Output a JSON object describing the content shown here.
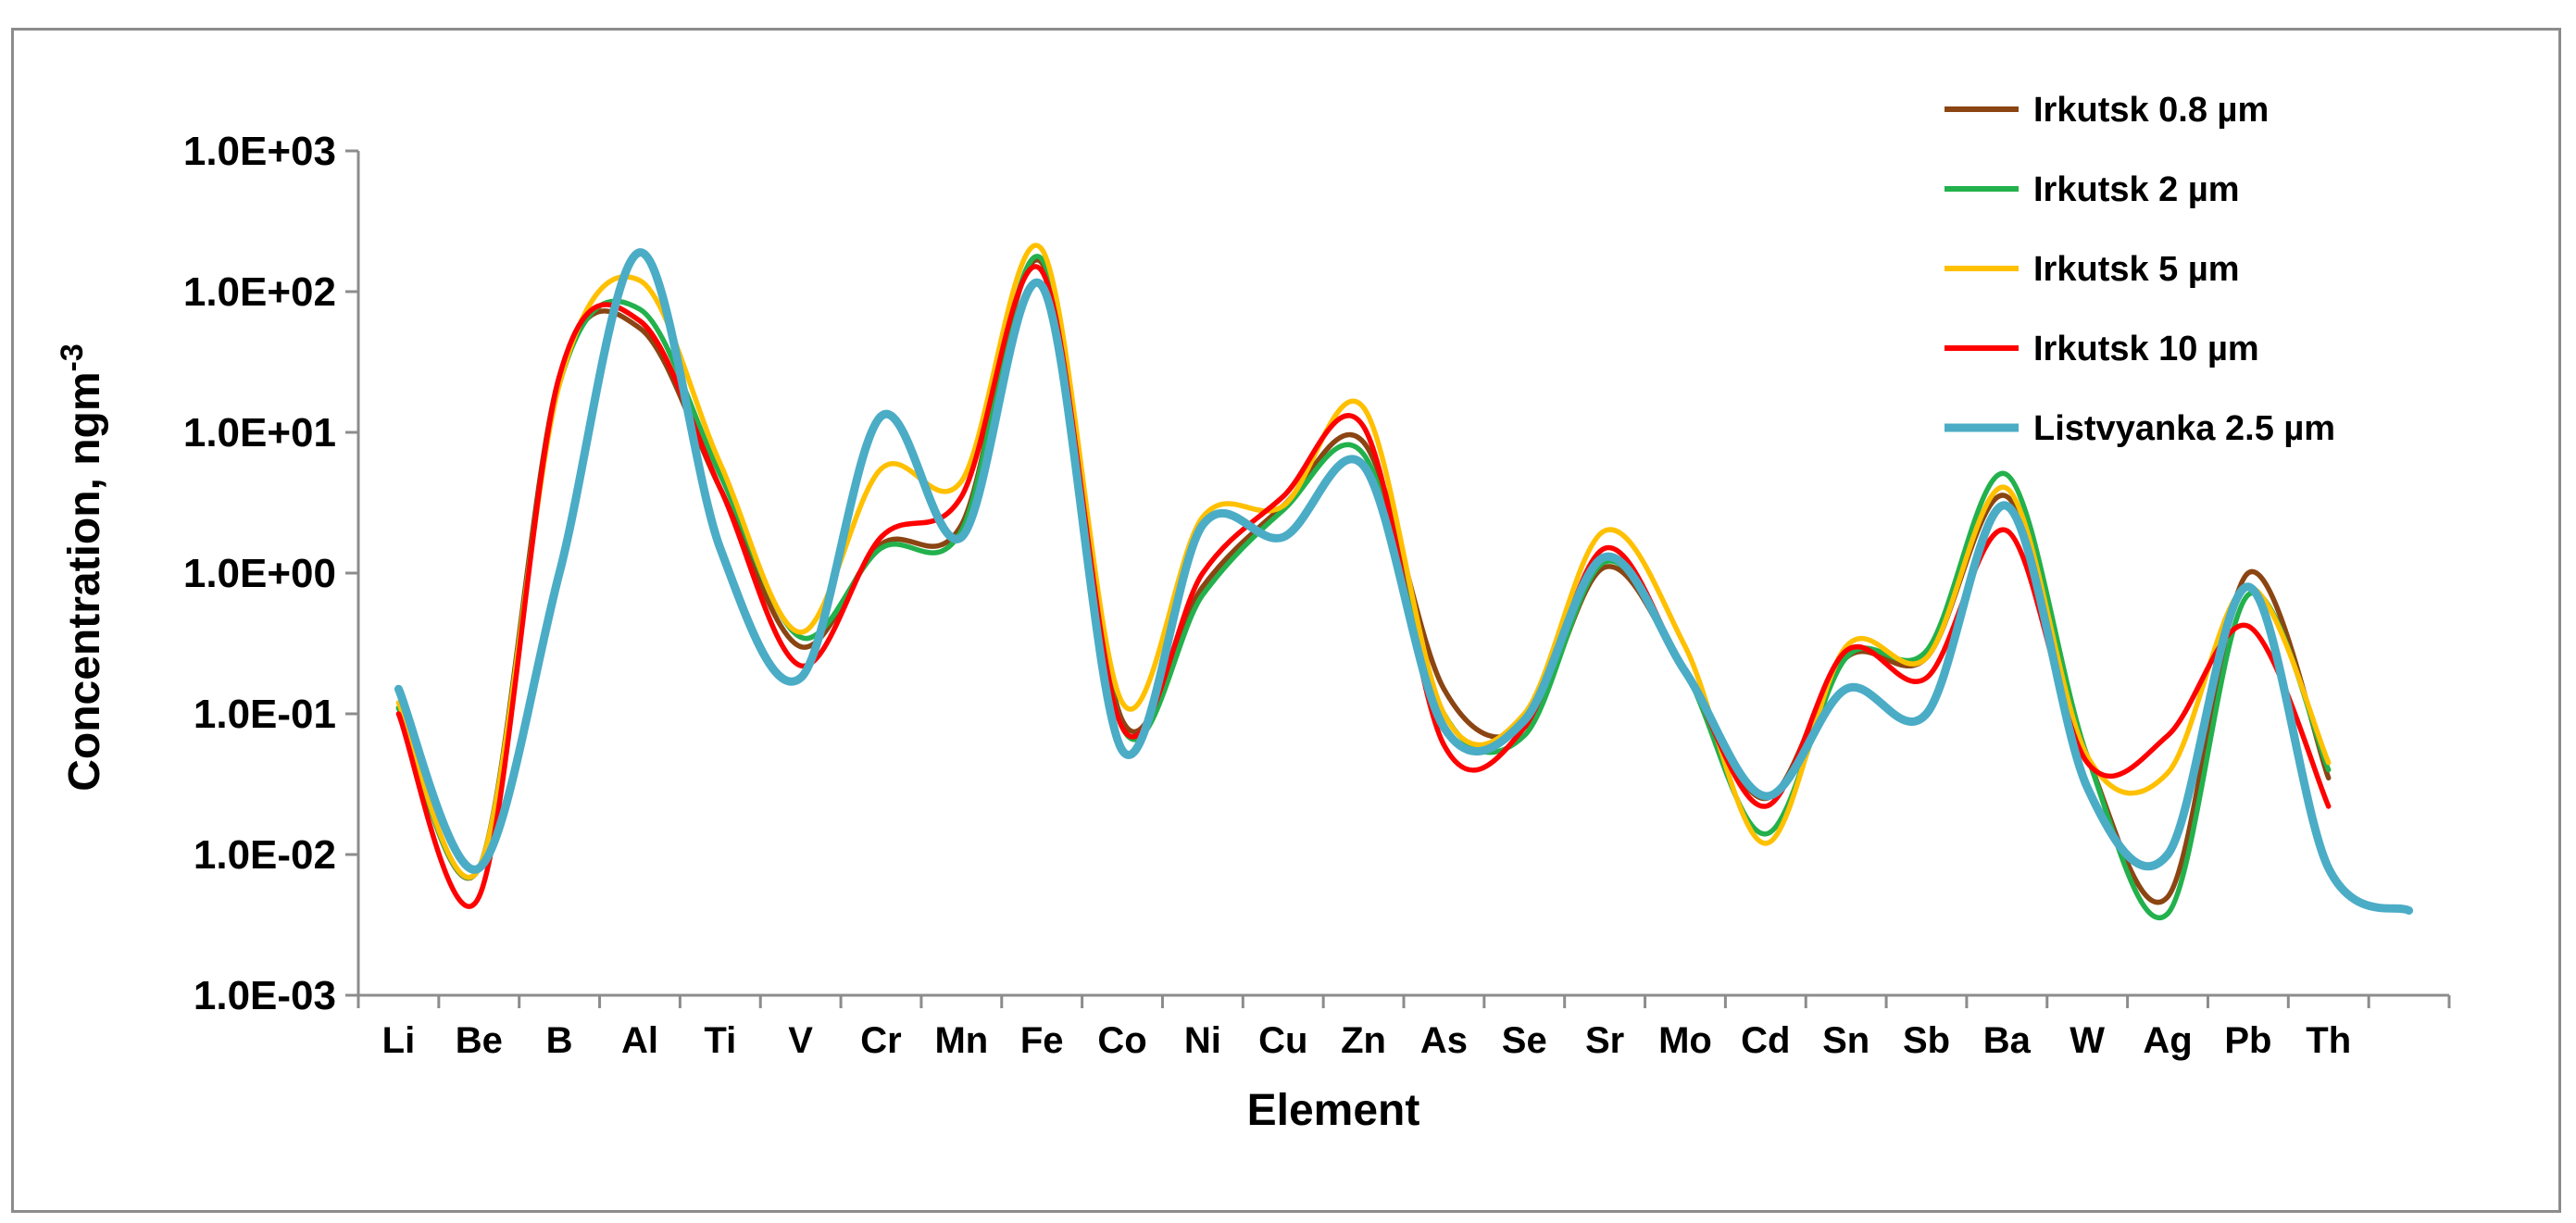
{
  "chart_data": {
    "type": "line",
    "title": "",
    "xlabel": "Element",
    "ylabel": "Concentration, ngm",
    "ylabel_superscript": "-3",
    "yscale": "log",
    "ylim": [
      0.001,
      1000
    ],
    "y_tick_labels": [
      "1.0E-03",
      "1.0E-02",
      "1.0E-01",
      "1.0E+00",
      "1.0E+01",
      "1.0E+02",
      "1.0E+03"
    ],
    "categories": [
      "Li",
      "Be",
      "B",
      "Al",
      "Ti",
      "V",
      "Cr",
      "Mn",
      "Fe",
      "Co",
      "Ni",
      "Cu",
      "Zn",
      "As",
      "Se",
      "Sr",
      "Mo",
      "Cd",
      "Sn",
      "Sb",
      "Ba",
      "W",
      "Ag",
      "Pb",
      "Th",
      ""
    ],
    "legend_position": "top-right",
    "grid": false,
    "series": [
      {
        "name": "Irkutsk 0.8 µm",
        "color": "#8B4513",
        "values": [
          0.11,
          0.008,
          25,
          55,
          4,
          0.3,
          1.6,
          2.2,
          160,
          0.09,
          0.8,
          3,
          8.5,
          0.15,
          0.08,
          1.1,
          0.2,
          0.025,
          0.25,
          0.25,
          3.5,
          0.05,
          0.005,
          1.0,
          0.035,
          null
        ]
      },
      {
        "name": "Irkutsk 2 µm",
        "color": "#22B14C",
        "values": [
          0.11,
          0.008,
          22,
          75,
          5,
          0.35,
          1.5,
          2.0,
          170,
          0.08,
          0.7,
          2.8,
          7,
          0.1,
          0.07,
          1.2,
          0.2,
          0.014,
          0.25,
          0.28,
          5.0,
          0.05,
          0.0038,
          0.7,
          0.04,
          null
        ]
      },
      {
        "name": "Irkutsk 5 µm",
        "color": "#FFC000",
        "values": [
          0.12,
          0.008,
          22,
          120,
          6,
          0.38,
          5.5,
          4.5,
          200,
          0.12,
          2.5,
          3,
          15,
          0.1,
          0.1,
          2.0,
          0.3,
          0.012,
          0.3,
          0.25,
          4.0,
          0.05,
          0.038,
          0.8,
          0.045,
          null
        ]
      },
      {
        "name": "Irkutsk 10 µm",
        "color": "#FF0000",
        "values": [
          0.1,
          0.005,
          25,
          62,
          4,
          0.22,
          1.8,
          3.5,
          140,
          0.08,
          1.0,
          3.5,
          11,
          0.06,
          0.08,
          1.5,
          0.2,
          0.022,
          0.28,
          0.18,
          2.0,
          0.045,
          0.07,
          0.42,
          0.022,
          null
        ]
      },
      {
        "name": "Listvyanka 2.5 µm",
        "color": "#4BACC6",
        "values": [
          0.15,
          0.008,
          1.0,
          190,
          1.5,
          0.18,
          13,
          1.8,
          110,
          0.055,
          2.2,
          1.8,
          5.8,
          0.08,
          0.09,
          1.3,
          0.2,
          0.026,
          0.15,
          0.1,
          3.0,
          0.03,
          0.01,
          0.8,
          0.008,
          0.004
        ]
      }
    ]
  }
}
